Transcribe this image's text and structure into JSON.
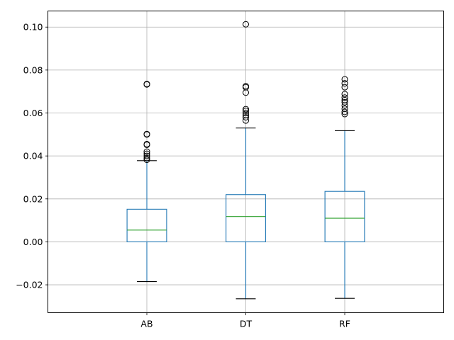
{
  "chart_data": {
    "type": "box",
    "title": "",
    "xlabel": "",
    "ylabel": "",
    "categories": [
      "AB",
      "DT",
      "RF"
    ],
    "ylim": [
      -0.033,
      0.1075
    ],
    "yticks": [
      -0.02,
      0.0,
      0.02,
      0.04,
      0.06,
      0.08,
      0.1
    ],
    "ytick_labels": [
      "−0.02",
      "0.00",
      "0.02",
      "0.04",
      "0.06",
      "0.08",
      "0.10"
    ],
    "grid": true,
    "colors": {
      "box": "#1f77b4",
      "median": "#2ca02c",
      "cap": "#000000",
      "flier": "#000000",
      "grid": "#b0b0b0"
    },
    "boxes": [
      {
        "name": "AB",
        "whisker_low": -0.0185,
        "q1": 0.0,
        "median": 0.0055,
        "q3": 0.0152,
        "whisker_high": 0.0378,
        "fliers": [
          0.0382,
          0.039,
          0.04,
          0.041,
          0.042,
          0.0452,
          0.0455,
          0.05,
          0.0502,
          0.0733,
          0.0735
        ]
      },
      {
        "name": "DT",
        "whisker_low": -0.0265,
        "q1": 0.0,
        "median": 0.0118,
        "q3": 0.022,
        "whisker_high": 0.053,
        "fliers": [
          0.0565,
          0.058,
          0.059,
          0.06,
          0.061,
          0.0618,
          0.0695,
          0.072,
          0.0725,
          0.1013
        ]
      },
      {
        "name": "RF",
        "whisker_low": -0.0263,
        "q1": 0.0,
        "median": 0.011,
        "q3": 0.0235,
        "whisker_high": 0.0518,
        "fliers": [
          0.0595,
          0.0605,
          0.062,
          0.0635,
          0.065,
          0.066,
          0.0672,
          0.0688,
          0.072,
          0.0738,
          0.0757
        ]
      }
    ]
  }
}
